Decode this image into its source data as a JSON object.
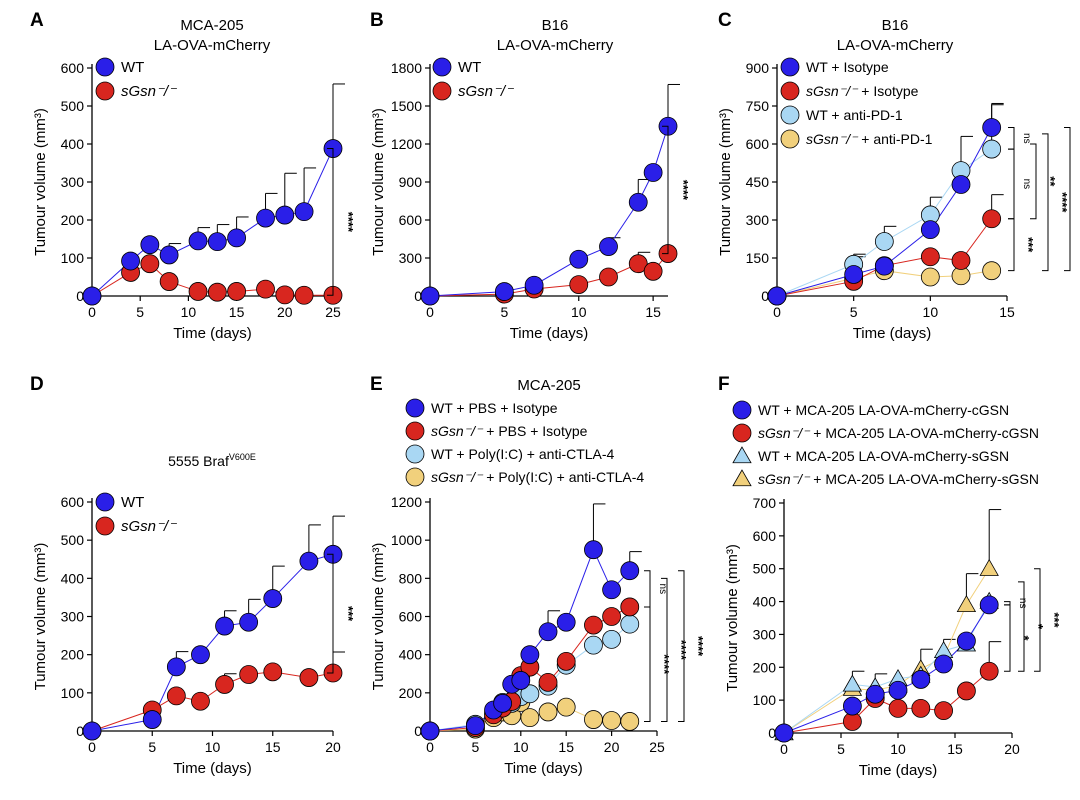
{
  "figure": {
    "panels": [
      "A",
      "B",
      "C",
      "D",
      "E",
      "F"
    ]
  },
  "colors": {
    "wt": "#2a1fe8",
    "ko": "#d8261f",
    "wt_light": "#a9d7f3",
    "ko_light": "#f1d07c",
    "axis": "#000000"
  },
  "chart_data": [
    {
      "panel": "A",
      "type": "line",
      "title": [
        "MCA-205",
        "LA-OVA-mCherry"
      ],
      "xlabel": "Time (days)",
      "ylabel": "Tumour volume (mm³)",
      "xlim": [
        0,
        25
      ],
      "ylim": [
        0,
        600
      ],
      "xticks": [
        0,
        5,
        10,
        15,
        20,
        25
      ],
      "yticks": [
        0,
        100,
        200,
        300,
        400,
        500,
        600
      ],
      "series": [
        {
          "name": "WT",
          "italic": false,
          "color": "#2a1fe8",
          "marker": "circle",
          "x": [
            0,
            4,
            6,
            8,
            11,
            13,
            15,
            18,
            20,
            22,
            25
          ],
          "y": [
            0,
            92,
            135,
            108,
            145,
            143,
            153,
            205,
            213,
            222,
            388
          ],
          "err": [
            0,
            0,
            0,
            30,
            35,
            45,
            55,
            65,
            110,
            115,
            170
          ]
        },
        {
          "name": "sGsn⁻/⁻",
          "italic": true,
          "color": "#d8261f",
          "marker": "circle",
          "x": [
            0,
            4,
            6,
            8,
            11,
            13,
            15,
            18,
            20,
            22,
            25
          ],
          "y": [
            0,
            62,
            85,
            38,
            12,
            10,
            12,
            18,
            3,
            2,
            2
          ],
          "err": [
            0,
            0,
            0,
            0,
            0,
            0,
            0,
            0,
            0,
            0,
            0
          ]
        }
      ],
      "significance": [
        {
          "label": "****"
        }
      ]
    },
    {
      "panel": "B",
      "type": "line",
      "title": [
        "B16",
        "LA-OVA-mCherry"
      ],
      "xlabel": "Time (days)",
      "ylabel": "Tumour volume (mm³)",
      "xlim": [
        0,
        16
      ],
      "ylim": [
        0,
        1800
      ],
      "xticks": [
        0,
        5,
        10,
        15
      ],
      "yticks": [
        0,
        300,
        600,
        900,
        1200,
        1500,
        1800
      ],
      "series": [
        {
          "name": "WT",
          "italic": false,
          "color": "#2a1fe8",
          "marker": "circle",
          "x": [
            0,
            5,
            7,
            10,
            12,
            14,
            15,
            16
          ],
          "y": [
            0,
            35,
            85,
            290,
            390,
            740,
            975,
            1340
          ],
          "err": [
            0,
            0,
            0,
            0,
            70,
            180,
            0,
            330
          ]
        },
        {
          "name": "sGsn⁻/⁻",
          "italic": true,
          "color": "#d8261f",
          "marker": "circle",
          "x": [
            0,
            5,
            7,
            10,
            12,
            14,
            15,
            16
          ],
          "y": [
            0,
            15,
            55,
            90,
            150,
            255,
            195,
            335
          ],
          "err": [
            0,
            0,
            0,
            0,
            0,
            90,
            0,
            0
          ]
        }
      ],
      "significance": [
        {
          "label": "****"
        }
      ]
    },
    {
      "panel": "C",
      "type": "line",
      "title": [
        "B16",
        "LA-OVA-mCherry"
      ],
      "xlabel": "Time (days)",
      "ylabel": "Tumour volume (mm³)",
      "xlim": [
        0,
        15
      ],
      "ylim": [
        0,
        900
      ],
      "xticks": [
        0,
        5,
        10,
        15
      ],
      "yticks": [
        0,
        150,
        300,
        450,
        600,
        750,
        900
      ],
      "series": [
        {
          "name": "WT + Isotype",
          "italic": false,
          "color": "#2a1fe8",
          "marker": "circle",
          "x": [
            0,
            5,
            7,
            10,
            12,
            14
          ],
          "y": [
            0,
            85,
            118,
            262,
            440,
            665
          ],
          "err": [
            0,
            70,
            0,
            0,
            190,
            90
          ]
        },
        {
          "name": "sGsn⁻/⁻ + Isotype",
          "italic": true,
          "color": "#d8261f",
          "marker": "circle",
          "x": [
            0,
            5,
            7,
            10,
            12,
            14
          ],
          "y": [
            0,
            58,
            120,
            155,
            140,
            305
          ],
          "err": [
            0,
            0,
            0,
            0,
            0,
            95
          ]
        },
        {
          "name": "WT + anti-PD-1",
          "italic": false,
          "color": "#a9d7f3",
          "marker": "circle",
          "x": [
            0,
            5,
            7,
            10,
            12,
            14
          ],
          "y": [
            0,
            125,
            215,
            320,
            495,
            580
          ],
          "err": [
            0,
            40,
            60,
            70,
            0,
            180
          ]
        },
        {
          "name": "sGsn⁻/⁻ + anti-PD-1",
          "italic": true,
          "color": "#f1d07c",
          "marker": "circle",
          "x": [
            0,
            5,
            7,
            10,
            12,
            14
          ],
          "y": [
            0,
            70,
            100,
            75,
            80,
            100
          ],
          "err": [
            0,
            0,
            0,
            0,
            0,
            0
          ]
        }
      ],
      "significance": [
        {
          "label": "ns"
        },
        {
          "label": "ns"
        },
        {
          "label": "***"
        },
        {
          "label": "**"
        },
        {
          "label": "****"
        },
        {
          "label": "****"
        }
      ]
    },
    {
      "panel": "D",
      "type": "line",
      "title": [
        "5555 Braf",
        "V600E"
      ],
      "xlabel": "Time (days)",
      "ylabel": "Tumour volume (mm³)",
      "xlim": [
        0,
        20
      ],
      "ylim": [
        0,
        600
      ],
      "xticks": [
        0,
        5,
        10,
        15,
        20
      ],
      "yticks": [
        0,
        100,
        200,
        300,
        400,
        500,
        600
      ],
      "series": [
        {
          "name": "WT",
          "italic": false,
          "color": "#2a1fe8",
          "marker": "circle",
          "x": [
            0,
            5,
            7,
            9,
            11,
            13,
            15,
            18,
            20
          ],
          "y": [
            0,
            30,
            168,
            200,
            275,
            285,
            347,
            445,
            463
          ],
          "err": [
            0,
            0,
            40,
            0,
            40,
            60,
            85,
            95,
            100
          ]
        },
        {
          "name": "sGsn⁻/⁻",
          "italic": true,
          "color": "#d8261f",
          "marker": "circle",
          "x": [
            0,
            5,
            7,
            9,
            11,
            13,
            15,
            18,
            20
          ],
          "y": [
            0,
            55,
            92,
            78,
            122,
            148,
            155,
            140,
            152
          ],
          "err": [
            0,
            0,
            0,
            0,
            28,
            0,
            0,
            0,
            55
          ]
        }
      ],
      "significance": [
        {
          "label": "***"
        }
      ]
    },
    {
      "panel": "E",
      "type": "line",
      "title": [
        "MCA-205"
      ],
      "xlabel": "Time (days)",
      "ylabel": "Tumour volume (mm³)",
      "xlim": [
        0,
        25
      ],
      "ylim": [
        0,
        1200
      ],
      "xticks": [
        0,
        5,
        10,
        15,
        20,
        25
      ],
      "yticks": [
        0,
        200,
        400,
        600,
        800,
        1000,
        1200
      ],
      "series": [
        {
          "name": "WT + PBS + Isotype",
          "italic": false,
          "color": "#2a1fe8",
          "marker": "circle",
          "x": [
            0,
            5,
            7,
            8,
            9,
            10,
            11,
            13,
            15,
            18,
            20,
            22
          ],
          "y": [
            0,
            28,
            110,
            145,
            245,
            265,
            400,
            520,
            570,
            950,
            740,
            840
          ],
          "err": [
            0,
            0,
            0,
            0,
            0,
            0,
            0,
            110,
            0,
            240,
            0,
            100
          ]
        },
        {
          "name": "sGsn⁻/⁻ + PBS + Isotype",
          "italic": true,
          "color": "#d8261f",
          "marker": "circle",
          "x": [
            0,
            5,
            7,
            8,
            9,
            10,
            11,
            13,
            15,
            18,
            20,
            22
          ],
          "y": [
            0,
            18,
            85,
            120,
            155,
            290,
            335,
            255,
            365,
            555,
            600,
            650
          ],
          "err": [
            0,
            0,
            0,
            0,
            0,
            0,
            0,
            0,
            0,
            0,
            0,
            0
          ]
        },
        {
          "name": "WT + Poly(I:C) + anti-CTLA-4",
          "italic": false,
          "color": "#a9d7f3",
          "marker": "circle",
          "x": [
            0,
            5,
            7,
            8,
            9,
            10,
            11,
            13,
            15,
            18,
            20,
            22
          ],
          "y": [
            0,
            35,
            95,
            150,
            145,
            180,
            195,
            235,
            345,
            450,
            480,
            560
          ],
          "err": [
            0,
            0,
            0,
            0,
            0,
            0,
            0,
            0,
            0,
            0,
            0,
            0
          ]
        },
        {
          "name": "sGsn⁻/⁻ + Poly(I:C) + anti-CTLA-4",
          "italic": true,
          "color": "#f1d07c",
          "marker": "circle",
          "x": [
            0,
            5,
            7,
            8,
            9,
            10,
            11,
            13,
            15,
            18,
            20,
            22
          ],
          "y": [
            0,
            10,
            70,
            100,
            80,
            150,
            70,
            100,
            125,
            60,
            55,
            50
          ],
          "err": [
            0,
            0,
            0,
            0,
            0,
            0,
            0,
            0,
            0,
            0,
            0,
            0
          ]
        }
      ],
      "significance": [
        {
          "label": "ns"
        },
        {
          "label": "****"
        },
        {
          "label": "****"
        },
        {
          "label": "****"
        }
      ]
    },
    {
      "panel": "F",
      "type": "line",
      "title": [],
      "xlabel": "Time (days)",
      "ylabel": "Tumour volume (mm³)",
      "xlim": [
        0,
        20
      ],
      "ylim": [
        0,
        700
      ],
      "xticks": [
        0,
        5,
        10,
        15,
        20
      ],
      "yticks": [
        0,
        100,
        200,
        300,
        400,
        500,
        600,
        700
      ],
      "series": [
        {
          "name": "WT + MCA-205 LA-OVA-mCherry-cGSN",
          "italic": false,
          "color": "#2a1fe8",
          "marker": "circle",
          "x": [
            0,
            6,
            8,
            10,
            12,
            14,
            16,
            18
          ],
          "y": [
            0,
            82,
            118,
            130,
            163,
            210,
            280,
            390
          ],
          "err": [
            0,
            0,
            0,
            0,
            0,
            75,
            0,
            0
          ]
        },
        {
          "name": "sGsn⁻/⁻ + MCA-205 LA-OVA-mCherry-cGSN",
          "italic": true,
          "color": "#d8261f",
          "marker": "circle",
          "x": [
            0,
            6,
            8,
            10,
            12,
            14,
            16,
            18
          ],
          "y": [
            0,
            35,
            105,
            75,
            75,
            68,
            128,
            188
          ],
          "err": [
            0,
            0,
            0,
            0,
            0,
            0,
            0,
            90
          ]
        },
        {
          "name": "WT + MCA-205 LA-OVA-mCherry-sGSN",
          "italic": false,
          "color": "#a9d7f3",
          "marker": "triangle",
          "x": [
            0,
            6,
            8,
            10,
            12,
            14,
            16,
            18
          ],
          "y": [
            0,
            148,
            140,
            165,
            175,
            250,
            270,
            400
          ],
          "err": [
            0,
            40,
            40,
            0,
            0,
            0,
            0,
            0
          ]
        },
        {
          "name": "sGsn⁻/⁻ + MCA-205 LA-OVA-mCherry-sGSN",
          "italic": true,
          "color": "#f1d07c",
          "marker": "triangle",
          "x": [
            0,
            6,
            8,
            10,
            12,
            14,
            16,
            18
          ],
          "y": [
            0,
            135,
            130,
            145,
            195,
            230,
            390,
            500
          ],
          "err": [
            0,
            0,
            0,
            0,
            60,
            0,
            95,
            180
          ]
        }
      ],
      "significance": [
        {
          "label": "ns"
        },
        {
          "label": "*"
        },
        {
          "label": "*"
        },
        {
          "label": "***"
        }
      ]
    }
  ]
}
